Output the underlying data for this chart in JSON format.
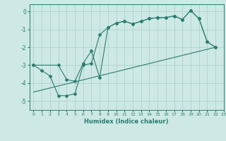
{
  "xlabel": "Humidex (Indice chaleur)",
  "xlim": [
    -0.5,
    23
  ],
  "ylim": [
    -5.5,
    0.4
  ],
  "yticks": [
    0,
    -1,
    -2,
    -3,
    -4,
    -5
  ],
  "xticks": [
    0,
    1,
    2,
    3,
    4,
    5,
    6,
    7,
    8,
    9,
    10,
    11,
    12,
    13,
    14,
    15,
    16,
    17,
    18,
    19,
    20,
    21,
    22,
    23
  ],
  "bg_color": "#cde8e5",
  "line_color": "#2a7d6e",
  "grid_color": "#aacfcb",
  "line1_x": [
    0,
    1,
    2,
    3,
    4,
    5,
    6,
    7,
    8,
    9,
    10,
    11,
    12,
    13,
    14,
    15,
    16,
    17,
    18,
    19,
    20,
    21,
    22
  ],
  "line1_y": [
    -3.0,
    -3.3,
    -3.6,
    -4.7,
    -4.7,
    -4.6,
    -3.0,
    -2.9,
    -1.3,
    -0.9,
    -0.65,
    -0.55,
    -0.7,
    -0.55,
    -0.4,
    -0.35,
    -0.35,
    -0.25,
    -0.45,
    0.05,
    -0.4,
    -1.7,
    -2.0
  ],
  "line2_x": [
    0,
    3,
    4,
    5,
    6,
    7,
    8,
    9,
    10,
    11,
    12,
    13,
    14,
    15,
    16,
    17,
    18,
    19,
    20,
    21,
    22
  ],
  "line2_y": [
    -3.0,
    -3.0,
    -3.8,
    -3.9,
    -2.9,
    -2.2,
    -3.7,
    -0.9,
    -0.65,
    -0.55,
    -0.7,
    -0.55,
    -0.4,
    -0.35,
    -0.35,
    -0.25,
    -0.45,
    0.05,
    -0.4,
    -1.7,
    -2.0
  ],
  "line3_x": [
    0,
    22
  ],
  "line3_y": [
    -4.5,
    -2.0
  ]
}
